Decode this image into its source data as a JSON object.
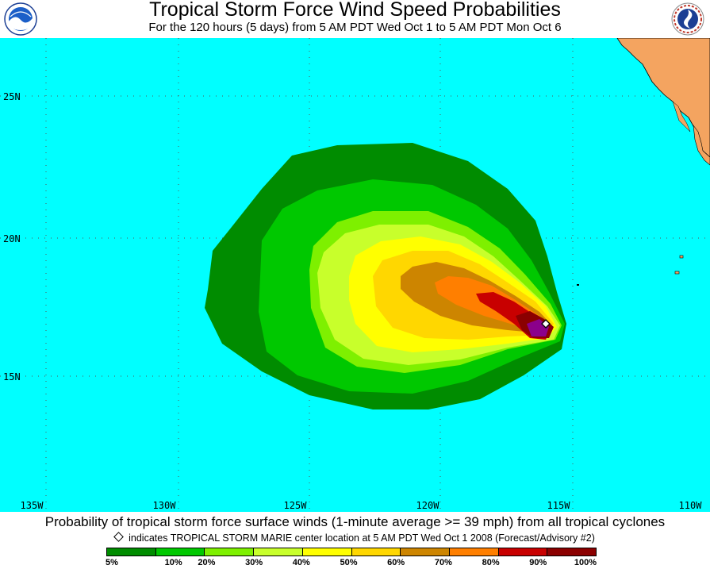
{
  "header": {
    "title": "Tropical Storm Force Wind Speed Probabilities",
    "subtitle": "For the 120 hours (5 days) from 5 AM PDT Wed Oct 1 to 5 AM PDT Mon Oct 6",
    "left_logo": "noaa-logo",
    "right_logo": "national-weather-service-logo"
  },
  "map": {
    "background_color": "#00ffff",
    "land_color": "#f4a460",
    "latitude_labels": [
      "25N",
      "20N",
      "15N"
    ],
    "longitude_labels": [
      "135W",
      "130W",
      "125W",
      "120W",
      "115W",
      "110W"
    ],
    "storm_center_marker": "diamond",
    "probability_colors": {
      "p5": "#008c00",
      "p10": "#00c800",
      "p20": "#7ef000",
      "p30": "#c8ff2b",
      "p40": "#ffff00",
      "p50": "#ffd700",
      "p60": "#cd8500",
      "p70": "#ff7f00",
      "p80": "#c80000",
      "p90": "#8b0000",
      "p100": "#8b008b"
    }
  },
  "footer": {
    "caption": "Probability of tropical storm force surface winds (1-minute average >= 39 mph) from all tropical cyclones",
    "center_note": "indicates TROPICAL STORM MARIE center location at 5 AM PDT Wed Oct 1 2008 (Forecast/Advisory #2)"
  },
  "legend": {
    "colors": [
      "#008c00",
      "#00c800",
      "#7ef000",
      "#c8ff2b",
      "#ffff00",
      "#ffd700",
      "#cd8500",
      "#ff7f00",
      "#c80000",
      "#8b0000",
      "#8b008b"
    ],
    "labels": [
      "5%",
      "10%",
      "20%",
      "30%",
      "40%",
      "50%",
      "60%",
      "70%",
      "80%",
      "90%",
      "100%"
    ]
  }
}
